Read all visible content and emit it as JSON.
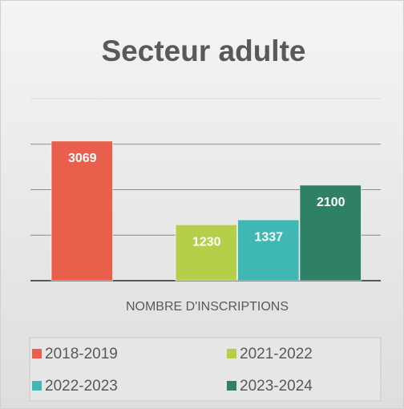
{
  "chart_data": {
    "type": "bar",
    "title": "Secteur adulte",
    "categories": [
      "NOMBRE D'INSCRIPTIONS"
    ],
    "series": [
      {
        "name": "2018-2019",
        "color": "#e8604c",
        "values": [
          3069
        ]
      },
      {
        "name": "2021-2022",
        "color": "#b5cf4a",
        "values": [
          1230
        ]
      },
      {
        "name": "2022-2023",
        "color": "#3fb8b4",
        "values": [
          1337
        ]
      },
      {
        "name": "2023-2024",
        "color": "#2e8066",
        "values": [
          2100
        ]
      }
    ],
    "ylim": [
      0,
      4000
    ],
    "yticks": [
      0,
      1000,
      2000,
      3000,
      4000
    ],
    "grid": true,
    "legend": "bottom"
  }
}
